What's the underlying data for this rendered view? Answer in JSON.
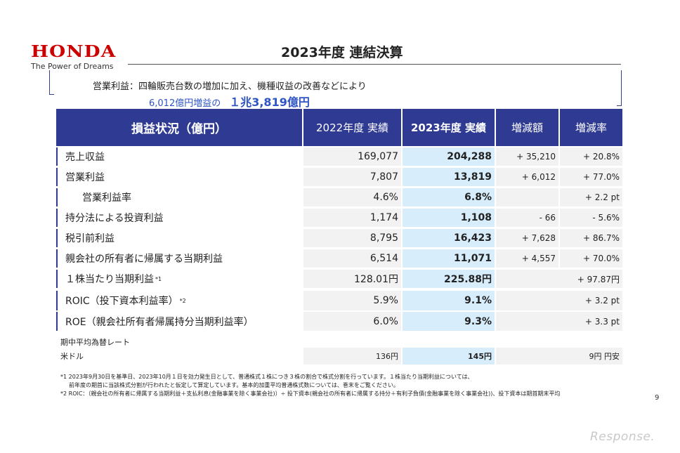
{
  "logo": {
    "brand": "HONDA",
    "tagline": "The Power of Dreams"
  },
  "title": "2023年度 連結決算",
  "summary": {
    "line1": "営業利益：四輪販売台数の増加に加え、機種収益の改善などにより",
    "line2_prefix": "6,012億円増益の",
    "line2_value": "１兆3,819億円"
  },
  "table": {
    "headers": [
      "損益状況（億円）",
      "2022年度 実績",
      "2023年度 実績",
      "増減額",
      "増減率"
    ],
    "rows": [
      {
        "label": "売上収益",
        "fy2022": "169,077",
        "fy2023": "204,288",
        "diff": "+ 35,210",
        "rate": "+ 20.8%"
      },
      {
        "label": "営業利益",
        "fy2022": "7,807",
        "fy2023": "13,819",
        "diff": "+ 6,012",
        "rate": "+ 77.0%"
      },
      {
        "label": "営業利益率",
        "fy2022": "4.6%",
        "fy2023": "6.8%",
        "diff": "",
        "rate": "+ 2.2 pt"
      },
      {
        "label": "持分法による投資利益",
        "fy2022": "1,174",
        "fy2023": "1,108",
        "diff": "- 66",
        "rate": "- 5.6%"
      },
      {
        "label": "税引前利益",
        "fy2022": "8,795",
        "fy2023": "16,423",
        "diff": "+ 7,628",
        "rate": "+ 86.7%"
      },
      {
        "label": "親会社の所有者に帰属する当期利益",
        "fy2022": "6,514",
        "fy2023": "11,071",
        "diff": "+ 4,557",
        "rate": "+ 70.0%"
      }
    ],
    "eps": {
      "label": "１株当たり当期利益",
      "note": "*1",
      "fy2022": "128.01円",
      "fy2023": "225.88円",
      "change": "+ 97.87円"
    },
    "roic": {
      "label": "ROIC（投下資本利益率）",
      "note": "*2",
      "fy2022": "5.9%",
      "fy2023": "9.1%",
      "change": "+ 3.2 pt"
    },
    "roe": {
      "label": "ROE（親会社所有者帰属持分当期利益率）",
      "fy2022": "6.0%",
      "fy2023": "9.3%",
      "change": "+ 3.3 pt"
    },
    "fx": {
      "heading": "期中平均為替レート",
      "label": "米ドル",
      "fy2022": "136円",
      "fy2023": "145円",
      "change": "9円 円安"
    }
  },
  "notes": {
    "n1a": "*1 2023年9月30日を基準日、2023年10月１日を効力発生日として、普通株式１株につき３株の割合で株式分割を行っています。１株当たり当期利益については、",
    "n1b": "前年度の期首に当該株式分割が行われたと仮定して算定しています。基本的加重平均普通株式数については、巻末をご覧ください。",
    "n2": "*2 ROIC：（親会社の所有者に帰属する当期利益＋支払利息(金融事業を除く事業会社)）÷ 投下資本(親会社の所有者に帰属する持分＋有利子負債(金融事業を除く事業会社))、投下資本は期首期末平均"
  },
  "page_number": "9",
  "watermark": "Response."
}
